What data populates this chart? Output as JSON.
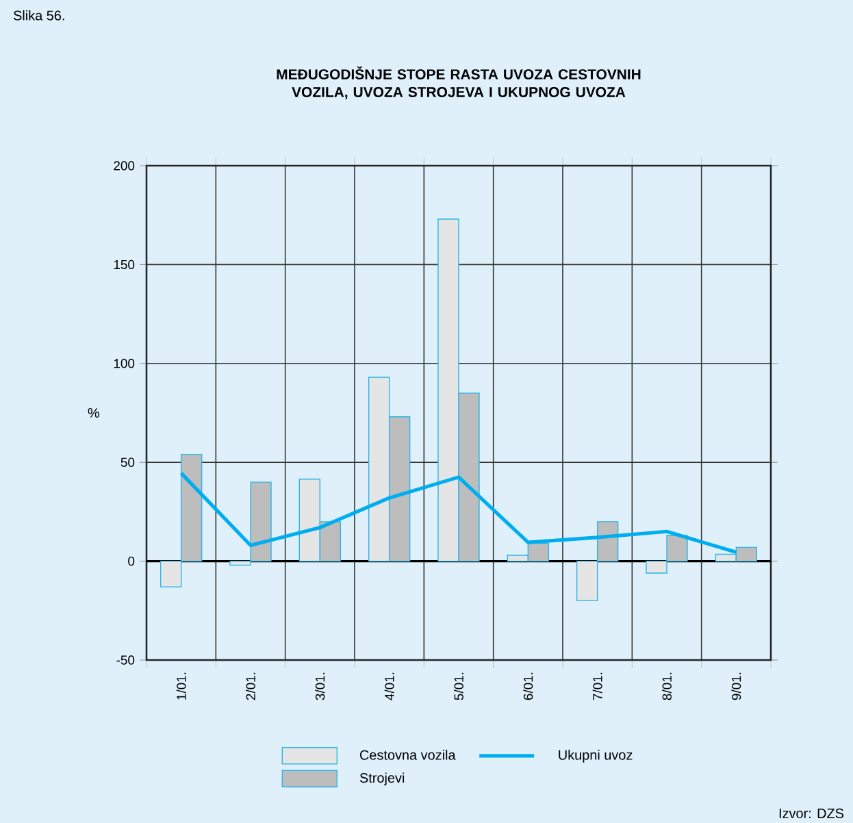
{
  "chart_data": {
    "type": "bar",
    "title": "MEĐUGODIŠNJE STOPE RASTA UVOZA CESTOVNIH VOZILA, UVOZA STROJEVA I UKUPNOG UVOZA",
    "ylabel": "%",
    "annotations": [
      "Slika 56.",
      "Izvor: DZS"
    ],
    "categories": [
      "1/01.",
      "2/01.",
      "3/01.",
      "4/01.",
      "5/01.",
      "6/01.",
      "7/01.",
      "8/01.",
      "9/01."
    ],
    "series": [
      {
        "name": "Cestovna vozila",
        "color": "#e5e5e5",
        "values": [
          -13,
          -2,
          41.5,
          93,
          173,
          3,
          -20,
          -6,
          3.5
        ]
      },
      {
        "name": "Strojevi",
        "color": "#bdbdbd",
        "values": [
          54,
          40,
          20,
          73,
          85,
          9,
          20,
          13,
          7
        ]
      },
      {
        "name": "Ukupni uvoz",
        "type": "line",
        "color": "#00aeef",
        "values": [
          44.5,
          8,
          17,
          32,
          42.5,
          9.5,
          12,
          15,
          4.5
        ]
      }
    ],
    "ylim": [
      -50,
      200
    ],
    "yticks": [
      -50,
      0,
      50,
      100,
      150,
      200
    ],
    "grid": true,
    "legend": "bottom"
  }
}
